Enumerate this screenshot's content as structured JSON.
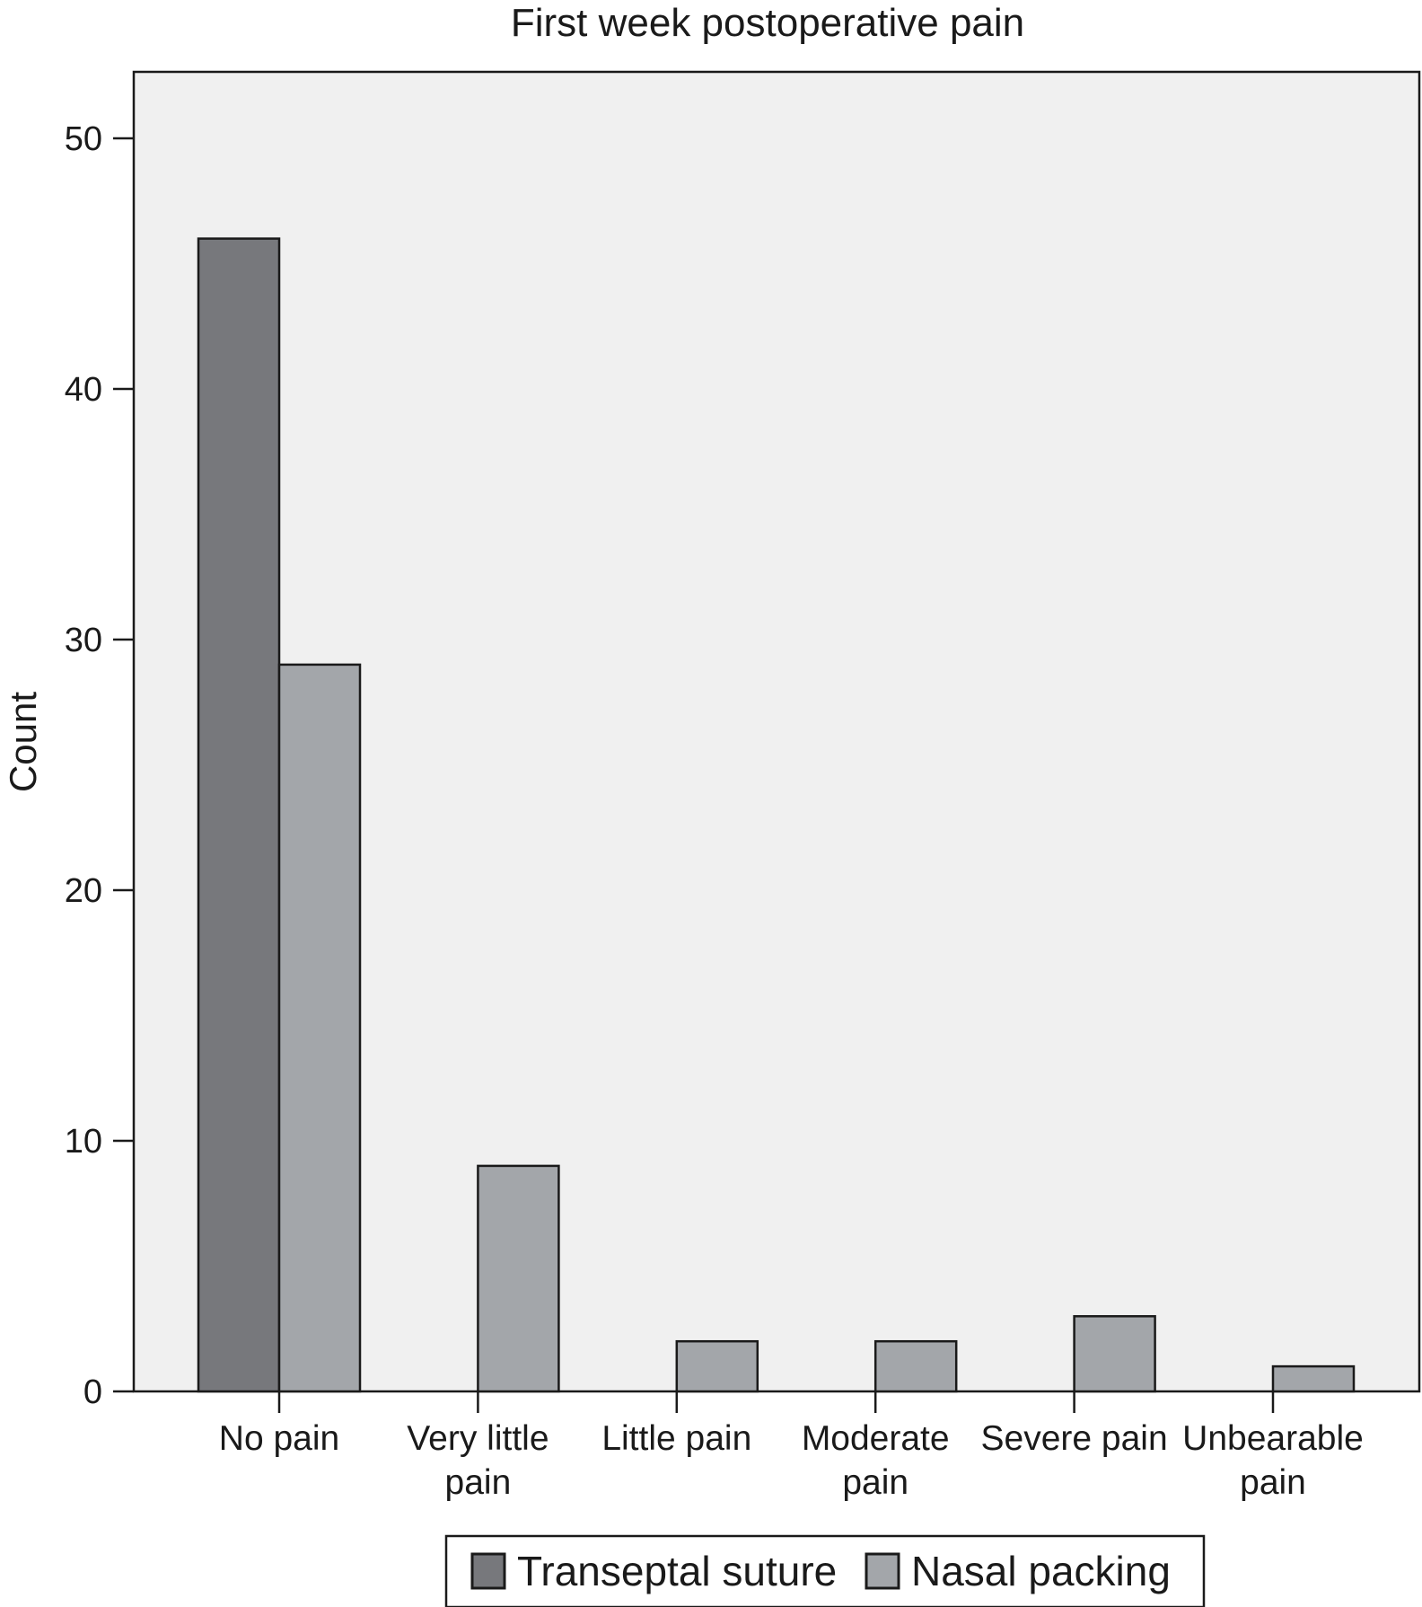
{
  "chart_data": {
    "type": "bar",
    "title": "First week postoperative pain",
    "xlabel": "",
    "ylabel": "Count",
    "ylim": [
      0,
      52.7
    ],
    "yticks": [
      0,
      10,
      20,
      30,
      40,
      50
    ],
    "grid": false,
    "legend": "bottom",
    "categories": [
      [
        "No pain"
      ],
      [
        "Very little",
        "pain"
      ],
      [
        "Little pain"
      ],
      [
        "Moderate",
        "pain"
      ],
      [
        "Severe pain"
      ],
      [
        "Unbearable",
        "pain"
      ]
    ],
    "series": [
      {
        "name": "Transeptal suture",
        "values": [
          46,
          0,
          0,
          0,
          0,
          0
        ],
        "color": "#77787c"
      },
      {
        "name": "Nasal packing",
        "values": [
          29,
          9,
          2,
          2,
          3,
          1
        ],
        "color": "#a3a6aa"
      }
    ],
    "plot_background": "#f0f0f0"
  }
}
